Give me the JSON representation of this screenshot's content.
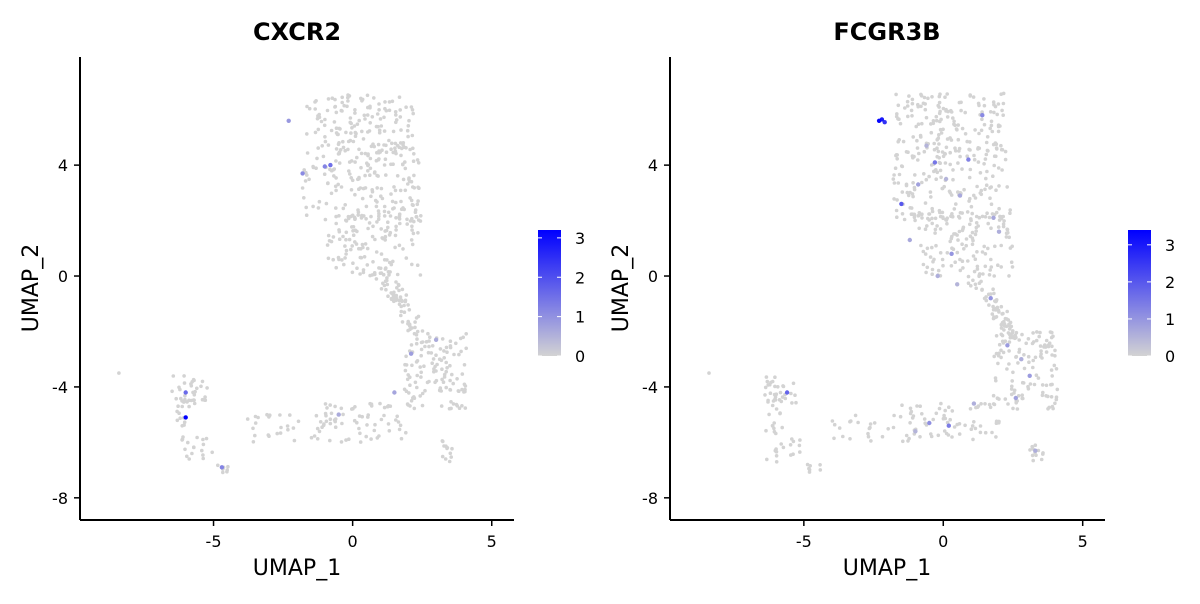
{
  "chart_data": [
    {
      "type": "scatter",
      "title": "CXCR2",
      "xlabel": "UMAP_1",
      "ylabel": "UMAP_2",
      "xlim": [
        -9.8,
        5.8
      ],
      "ylim": [
        -8.8,
        7.9
      ],
      "xticks": [
        -5,
        0,
        5
      ],
      "yticks": [
        -8,
        -4,
        0,
        4
      ],
      "xtick_labels": [
        "-5",
        "0",
        "5"
      ],
      "ytick_labels": [
        "-8",
        "-4",
        "0",
        "4"
      ],
      "grid": false,
      "legend": "right",
      "color_scale": {
        "low": "#d3d3d3",
        "high": "#0000ff",
        "min": 0,
        "max": 3.2,
        "ticks": [
          0,
          1,
          2,
          3
        ],
        "tick_labels": [
          "0",
          "1",
          "2",
          "3"
        ]
      },
      "highlighted_points": [
        {
          "x": -6.0,
          "y": -5.1,
          "value": 3.2
        },
        {
          "x": -6.0,
          "y": -4.2,
          "value": 1.6
        },
        {
          "x": -0.8,
          "y": 4.0,
          "value": 1.5
        },
        {
          "x": -1.0,
          "y": 3.95,
          "value": 1.2
        },
        {
          "x": -1.8,
          "y": 3.7,
          "value": 1.1
        },
        {
          "x": -4.7,
          "y": -6.9,
          "value": 1.2
        },
        {
          "x": -2.3,
          "y": 5.6,
          "value": 0.9
        },
        {
          "x": 2.1,
          "y": -2.8,
          "value": 0.8
        },
        {
          "x": 1.5,
          "y": -4.2,
          "value": 0.7
        },
        {
          "x": 3.0,
          "y": -2.3,
          "value": 0.6
        },
        {
          "x": -0.5,
          "y": -5.0,
          "value": 0.6
        }
      ]
    },
    {
      "type": "scatter",
      "title": "FCGR3B",
      "xlabel": "UMAP_1",
      "ylabel": "UMAP_2",
      "xlim": [
        -9.8,
        5.8
      ],
      "ylim": [
        -8.8,
        7.9
      ],
      "xticks": [
        -5,
        0,
        5
      ],
      "yticks": [
        -8,
        -4,
        0,
        4
      ],
      "xtick_labels": [
        "-5",
        "0",
        "5"
      ],
      "ytick_labels": [
        "-8",
        "-4",
        "0",
        "4"
      ],
      "grid": false,
      "legend": "right",
      "color_scale": {
        "low": "#d3d3d3",
        "high": "#0000ff",
        "min": 0,
        "max": 3.4,
        "ticks": [
          0,
          1,
          2,
          3
        ],
        "tick_labels": [
          "0",
          "1",
          "2",
          "3"
        ]
      },
      "highlighted_points": [
        {
          "x": -2.3,
          "y": 5.6,
          "value": 3.3
        },
        {
          "x": -2.2,
          "y": 5.65,
          "value": 3.0
        },
        {
          "x": -2.1,
          "y": 5.55,
          "value": 2.6
        },
        {
          "x": -1.5,
          "y": 2.6,
          "value": 2.0
        },
        {
          "x": -5.6,
          "y": -4.2,
          "value": 1.8
        },
        {
          "x": -0.3,
          "y": 4.1,
          "value": 1.5
        },
        {
          "x": 0.9,
          "y": 4.2,
          "value": 1.3
        },
        {
          "x": 1.4,
          "y": 5.8,
          "value": 1.2
        },
        {
          "x": 0.2,
          "y": -5.4,
          "value": 1.4
        },
        {
          "x": -0.5,
          "y": -5.3,
          "value": 1.1
        },
        {
          "x": 0.3,
          "y": 0.8,
          "value": 1.0
        },
        {
          "x": 1.7,
          "y": -0.8,
          "value": 1.0
        },
        {
          "x": 2.3,
          "y": -2.5,
          "value": 0.9
        },
        {
          "x": 3.1,
          "y": -3.6,
          "value": 0.9
        },
        {
          "x": 2.6,
          "y": -4.4,
          "value": 0.8
        },
        {
          "x": -0.9,
          "y": 3.3,
          "value": 0.8
        },
        {
          "x": -1.2,
          "y": 1.3,
          "value": 0.7
        },
        {
          "x": 0.6,
          "y": 2.9,
          "value": 0.7
        },
        {
          "x": 1.8,
          "y": 2.1,
          "value": 0.7
        },
        {
          "x": 2.0,
          "y": 1.6,
          "value": 0.6
        },
        {
          "x": -0.2,
          "y": 0.0,
          "value": 0.6
        },
        {
          "x": 3.3,
          "y": -6.3,
          "value": 0.6
        },
        {
          "x": 1.1,
          "y": -4.6,
          "value": 0.6
        },
        {
          "x": -1.0,
          "y": -5.6,
          "value": 0.5
        },
        {
          "x": 2.8,
          "y": -3.0,
          "value": 0.6
        },
        {
          "x": 0.5,
          "y": -0.3,
          "value": 0.5
        },
        {
          "x": -0.6,
          "y": 4.7,
          "value": 0.5
        },
        {
          "x": 0.1,
          "y": 3.5,
          "value": 0.5
        }
      ]
    }
  ]
}
